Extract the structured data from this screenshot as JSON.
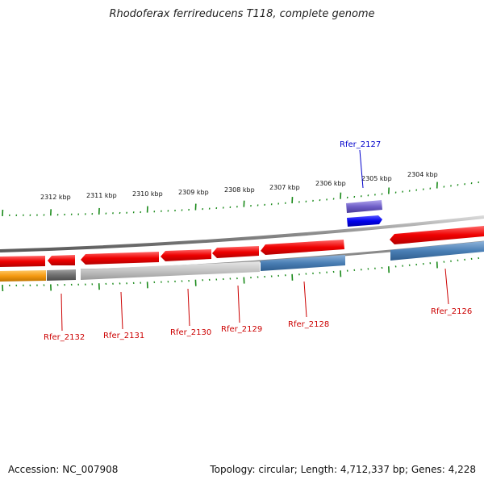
{
  "title": "Rhodoferax ferrireducens T118, complete genome",
  "footer": {
    "accession": "Accession: NC_007908",
    "summary": "Topology: circular; Length: 4,712,337 bp; Genes: 4,228"
  },
  "scale_labels": [
    "2304 kbp",
    "2305 kbp",
    "2306 kbp",
    "2307 kbp",
    "2308 kbp",
    "2309 kbp",
    "2310 kbp",
    "2311 kbp",
    "2312 kbp"
  ],
  "gene_labels": {
    "rfer_2127": "Rfer_2127",
    "rfer_2126": "Rfer_2126",
    "rfer_2128": "Rfer_2128",
    "rfer_2129": "Rfer_2129",
    "rfer_2130": "Rfer_2130",
    "rfer_2131": "Rfer_2131",
    "rfer_2132": "Rfer_2132"
  },
  "colors": {
    "cds_red": "#ee0000",
    "rna_blue": "#4a7fb5",
    "highlight_blue": "#0000ee",
    "purple": "#7060c8",
    "orange": "#f59a12",
    "gray": "#7a7a7a",
    "tick_green": "#1a8a1a",
    "label_red": "#cc0000",
    "label_blue": "#0000cc"
  }
}
